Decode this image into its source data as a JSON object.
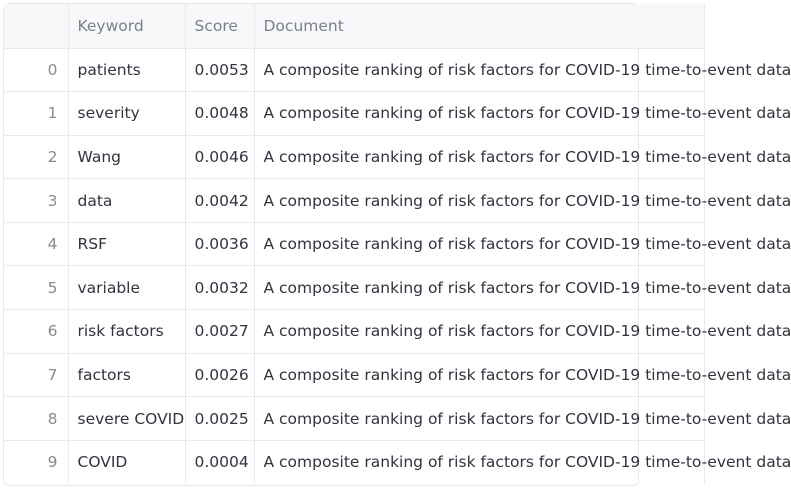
{
  "table": {
    "columns": [
      "",
      "Keyword",
      "Score",
      "Document"
    ],
    "rows": [
      {
        "index": "0",
        "keyword": "patients",
        "score": "0.0053",
        "document": "A composite ranking of risk factors for COVID-19 time-to-event data"
      },
      {
        "index": "1",
        "keyword": "severity",
        "score": "0.0048",
        "document": "A composite ranking of risk factors for COVID-19 time-to-event data"
      },
      {
        "index": "2",
        "keyword": "Wang",
        "score": "0.0046",
        "document": "A composite ranking of risk factors for COVID-19 time-to-event data"
      },
      {
        "index": "3",
        "keyword": "data",
        "score": "0.0042",
        "document": "A composite ranking of risk factors for COVID-19 time-to-event data"
      },
      {
        "index": "4",
        "keyword": "RSF",
        "score": "0.0036",
        "document": "A composite ranking of risk factors for COVID-19 time-to-event data"
      },
      {
        "index": "5",
        "keyword": "variable",
        "score": "0.0032",
        "document": "A composite ranking of risk factors for COVID-19 time-to-event data"
      },
      {
        "index": "6",
        "keyword": "risk factors",
        "score": "0.0027",
        "document": "A composite ranking of risk factors for COVID-19 time-to-event data"
      },
      {
        "index": "7",
        "keyword": "factors",
        "score": "0.0026",
        "document": "A composite ranking of risk factors for COVID-19 time-to-event data"
      },
      {
        "index": "8",
        "keyword": "severe COVID",
        "score": "0.0025",
        "document": "A composite ranking of risk factors for COVID-19 time-to-event data"
      },
      {
        "index": "9",
        "keyword": "COVID",
        "score": "0.0004",
        "document": "A composite ranking of risk factors for COVID-19 time-to-event data"
      }
    ]
  }
}
